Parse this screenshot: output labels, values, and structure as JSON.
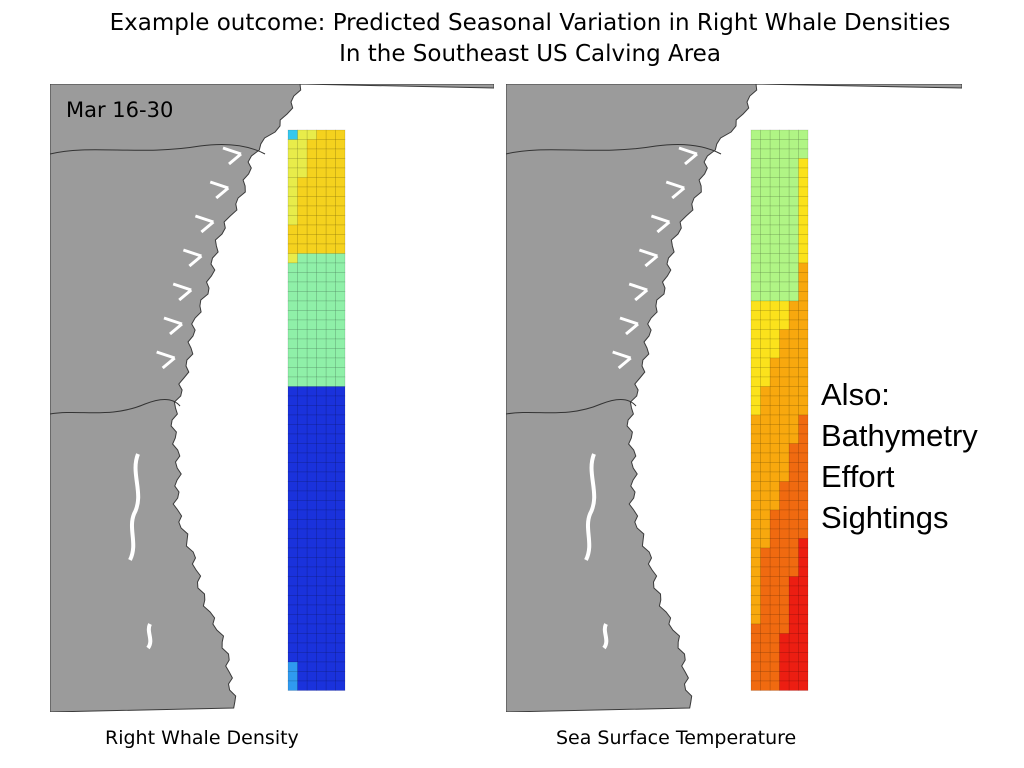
{
  "title": {
    "line1": "Example outcome:  Predicted Seasonal Variation in Right Whale Densities",
    "line2": "In the Southeast US Calving Area"
  },
  "maps": {
    "left": {
      "date_label": "Mar 16-30",
      "caption": "Right Whale Density",
      "colors": {
        "land": "#9b9b9b",
        "very_high": "#f5d21e",
        "high": "#e8ec4a",
        "medium": "#8ff0a8",
        "low": "#36c8ee",
        "lower": "#2f9af0",
        "lowest": "#1a32dc"
      }
    },
    "right": {
      "caption": "Sea Surface Temperature",
      "colors": {
        "land": "#9b9b9b",
        "coolest": "#b0f585",
        "cool": "#e8f23a",
        "mild": "#fbe21c",
        "warm": "#f8a80e",
        "warmer": "#f06a10",
        "warmest": "#ec1e12"
      }
    }
  },
  "aside": {
    "items": [
      "Also:",
      "Bathymetry",
      "Effort",
      "Sightings"
    ]
  }
}
